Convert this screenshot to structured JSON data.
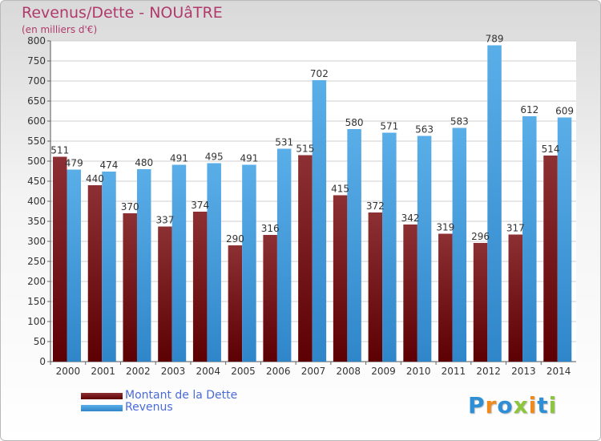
{
  "colors": {
    "debt_top": "#8c3033",
    "debt_bottom": "#5c0004",
    "revenue_top": "#5aaee8",
    "revenue_bottom": "#2f86c9",
    "title": "#b03a6b",
    "legend_text": "#4a6bd8"
  },
  "chart_data": {
    "type": "bar",
    "title": "Revenus/Dette - NOUâTRE",
    "subtitle": "(en milliers d'€)",
    "categories": [
      "2000",
      "2001",
      "2002",
      "2003",
      "2004",
      "2005",
      "2006",
      "2007",
      "2008",
      "2009",
      "2010",
      "2011",
      "2012",
      "2013",
      "2014"
    ],
    "series": [
      {
        "name": "Montant de la Dette",
        "values": [
          511,
          440,
          370,
          337,
          374,
          290,
          316,
          515,
          415,
          372,
          342,
          319,
          296,
          317,
          514
        ]
      },
      {
        "name": "Revenus",
        "values": [
          479,
          474,
          480,
          491,
          495,
          491,
          531,
          702,
          580,
          571,
          563,
          583,
          789,
          612,
          609
        ]
      }
    ],
    "ylim": [
      0,
      800
    ],
    "yticks": [
      0,
      50,
      100,
      150,
      200,
      250,
      300,
      350,
      400,
      450,
      500,
      550,
      600,
      650,
      700,
      750,
      800
    ],
    "grid": true,
    "legend_position": "bottom-left"
  },
  "legend": {
    "debt_label": "Montant de la Dette",
    "revenue_label": "Revenus"
  },
  "logo": {
    "text": "Proxiti"
  }
}
